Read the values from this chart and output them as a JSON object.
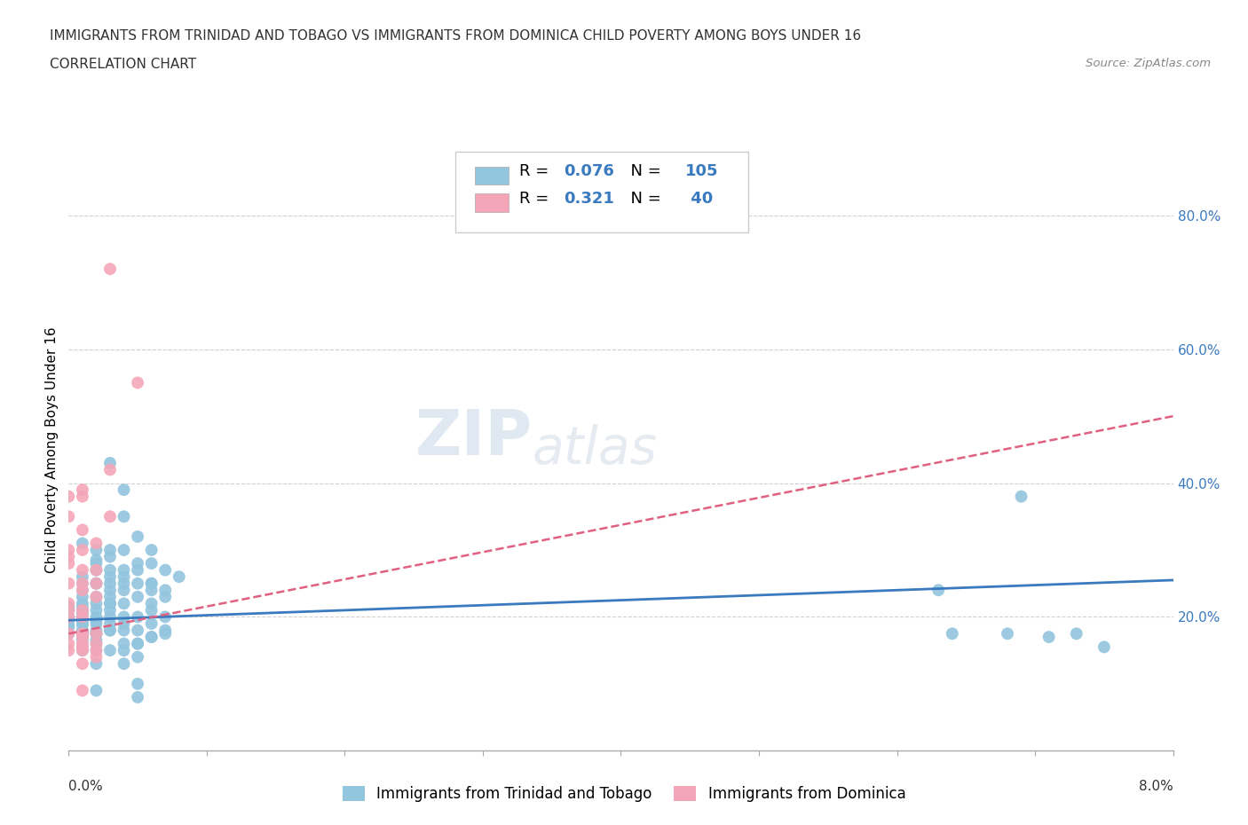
{
  "title_line1": "IMMIGRANTS FROM TRINIDAD AND TOBAGO VS IMMIGRANTS FROM DOMINICA CHILD POVERTY AMONG BOYS UNDER 16",
  "title_line2": "CORRELATION CHART",
  "source_text": "Source: ZipAtlas.com",
  "ylabel": "Child Poverty Among Boys Under 16",
  "xmin": 0.0,
  "xmax": 0.08,
  "ymin": 0.0,
  "ymax": 0.9,
  "yticks": [
    0.2,
    0.4,
    0.6,
    0.8
  ],
  "ytick_labels": [
    "20.0%",
    "40.0%",
    "60.0%",
    "80.0%"
  ],
  "xtick_positions": [
    0.0,
    0.01,
    0.02,
    0.03,
    0.04,
    0.05,
    0.06,
    0.07,
    0.08
  ],
  "color_blue": "#92c5de",
  "color_pink": "#f4a6b8",
  "color_blue_line": "#3a7abf",
  "color_pink_line": "#e06080",
  "legend_label_blue": "Immigrants from Trinidad and Tobago",
  "legend_label_pink": "Immigrants from Dominica",
  "watermark": "ZIPatlas",
  "grid_color": "#d0d0d0",
  "blue_line_x": [
    0.0,
    0.08
  ],
  "blue_line_y": [
    0.195,
    0.255
  ],
  "pink_line_x": [
    0.0,
    0.08
  ],
  "pink_line_y": [
    0.175,
    0.5
  ],
  "blue_scatter": [
    [
      0.0,
      0.188
    ],
    [
      0.0,
      0.2
    ],
    [
      0.0,
      0.175
    ],
    [
      0.0,
      0.215
    ],
    [
      0.0,
      0.195
    ],
    [
      0.0,
      0.21
    ],
    [
      0.0,
      0.185
    ],
    [
      0.001,
      0.25
    ],
    [
      0.001,
      0.188
    ],
    [
      0.001,
      0.2
    ],
    [
      0.001,
      0.15
    ],
    [
      0.001,
      0.21
    ],
    [
      0.001,
      0.23
    ],
    [
      0.001,
      0.175
    ],
    [
      0.001,
      0.26
    ],
    [
      0.001,
      0.155
    ],
    [
      0.001,
      0.19
    ],
    [
      0.001,
      0.205
    ],
    [
      0.001,
      0.175
    ],
    [
      0.001,
      0.31
    ],
    [
      0.001,
      0.22
    ],
    [
      0.001,
      0.18
    ],
    [
      0.001,
      0.165
    ],
    [
      0.001,
      0.195
    ],
    [
      0.001,
      0.215
    ],
    [
      0.001,
      0.24
    ],
    [
      0.001,
      0.17
    ],
    [
      0.002,
      0.25
    ],
    [
      0.002,
      0.2
    ],
    [
      0.002,
      0.18
    ],
    [
      0.002,
      0.23
    ],
    [
      0.002,
      0.27
    ],
    [
      0.002,
      0.19
    ],
    [
      0.002,
      0.175
    ],
    [
      0.002,
      0.15
    ],
    [
      0.002,
      0.28
    ],
    [
      0.002,
      0.21
    ],
    [
      0.002,
      0.16
    ],
    [
      0.002,
      0.3
    ],
    [
      0.002,
      0.175
    ],
    [
      0.002,
      0.22
    ],
    [
      0.002,
      0.195
    ],
    [
      0.002,
      0.13
    ],
    [
      0.002,
      0.25
    ],
    [
      0.002,
      0.09
    ],
    [
      0.002,
      0.285
    ],
    [
      0.002,
      0.165
    ],
    [
      0.003,
      0.29
    ],
    [
      0.003,
      0.27
    ],
    [
      0.003,
      0.25
    ],
    [
      0.003,
      0.22
    ],
    [
      0.003,
      0.2
    ],
    [
      0.003,
      0.18
    ],
    [
      0.003,
      0.15
    ],
    [
      0.003,
      0.21
    ],
    [
      0.003,
      0.23
    ],
    [
      0.003,
      0.26
    ],
    [
      0.003,
      0.3
    ],
    [
      0.003,
      0.18
    ],
    [
      0.003,
      0.22
    ],
    [
      0.003,
      0.43
    ],
    [
      0.003,
      0.24
    ],
    [
      0.003,
      0.19
    ],
    [
      0.004,
      0.3
    ],
    [
      0.004,
      0.26
    ],
    [
      0.004,
      0.22
    ],
    [
      0.004,
      0.18
    ],
    [
      0.004,
      0.25
    ],
    [
      0.004,
      0.2
    ],
    [
      0.004,
      0.15
    ],
    [
      0.004,
      0.27
    ],
    [
      0.004,
      0.19
    ],
    [
      0.004,
      0.35
    ],
    [
      0.004,
      0.16
    ],
    [
      0.004,
      0.13
    ],
    [
      0.004,
      0.39
    ],
    [
      0.004,
      0.24
    ],
    [
      0.005,
      0.28
    ],
    [
      0.005,
      0.23
    ],
    [
      0.005,
      0.2
    ],
    [
      0.005,
      0.25
    ],
    [
      0.005,
      0.18
    ],
    [
      0.005,
      0.16
    ],
    [
      0.005,
      0.32
    ],
    [
      0.005,
      0.14
    ],
    [
      0.005,
      0.1
    ],
    [
      0.005,
      0.16
    ],
    [
      0.005,
      0.27
    ],
    [
      0.005,
      0.08
    ],
    [
      0.006,
      0.3
    ],
    [
      0.006,
      0.25
    ],
    [
      0.006,
      0.22
    ],
    [
      0.006,
      0.19
    ],
    [
      0.006,
      0.28
    ],
    [
      0.006,
      0.17
    ],
    [
      0.006,
      0.21
    ],
    [
      0.006,
      0.25
    ],
    [
      0.006,
      0.17
    ],
    [
      0.006,
      0.24
    ],
    [
      0.007,
      0.27
    ],
    [
      0.007,
      0.23
    ],
    [
      0.007,
      0.2
    ],
    [
      0.007,
      0.18
    ],
    [
      0.007,
      0.24
    ],
    [
      0.007,
      0.175
    ],
    [
      0.008,
      0.26
    ],
    [
      0.063,
      0.24
    ],
    [
      0.064,
      0.175
    ],
    [
      0.068,
      0.175
    ],
    [
      0.069,
      0.38
    ],
    [
      0.071,
      0.17
    ],
    [
      0.073,
      0.175
    ],
    [
      0.075,
      0.155
    ]
  ],
  "pink_scatter": [
    [
      0.0,
      0.2
    ],
    [
      0.0,
      0.25
    ],
    [
      0.0,
      0.28
    ],
    [
      0.0,
      0.175
    ],
    [
      0.0,
      0.3
    ],
    [
      0.0,
      0.22
    ],
    [
      0.0,
      0.35
    ],
    [
      0.0,
      0.15
    ],
    [
      0.0,
      0.38
    ],
    [
      0.0,
      0.21
    ],
    [
      0.0,
      0.16
    ],
    [
      0.0,
      0.29
    ],
    [
      0.001,
      0.39
    ],
    [
      0.001,
      0.33
    ],
    [
      0.001,
      0.27
    ],
    [
      0.001,
      0.3
    ],
    [
      0.001,
      0.25
    ],
    [
      0.001,
      0.21
    ],
    [
      0.001,
      0.175
    ],
    [
      0.001,
      0.16
    ],
    [
      0.001,
      0.155
    ],
    [
      0.001,
      0.13
    ],
    [
      0.001,
      0.38
    ],
    [
      0.001,
      0.24
    ],
    [
      0.001,
      0.2
    ],
    [
      0.001,
      0.17
    ],
    [
      0.001,
      0.09
    ],
    [
      0.001,
      0.15
    ],
    [
      0.002,
      0.31
    ],
    [
      0.002,
      0.27
    ],
    [
      0.002,
      0.23
    ],
    [
      0.002,
      0.175
    ],
    [
      0.002,
      0.15
    ],
    [
      0.002,
      0.16
    ],
    [
      0.002,
      0.14
    ],
    [
      0.002,
      0.25
    ],
    [
      0.003,
      0.42
    ],
    [
      0.003,
      0.35
    ],
    [
      0.003,
      0.72
    ],
    [
      0.005,
      0.55
    ]
  ]
}
